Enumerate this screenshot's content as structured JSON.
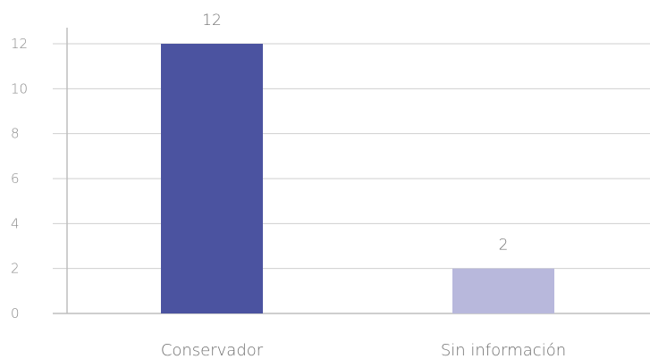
{
  "chart_data": {
    "type": "bar",
    "categories": [
      "Conservador",
      "Sin información"
    ],
    "values": [
      12,
      2
    ],
    "colors": [
      "#4b53a0",
      "#b8b8dc"
    ],
    "title": "",
    "xlabel": "",
    "ylabel": "",
    "ylim": [
      0,
      12
    ],
    "yticks": [
      0,
      2,
      4,
      6,
      8,
      10,
      12
    ],
    "grid": true,
    "data_labels": true
  }
}
